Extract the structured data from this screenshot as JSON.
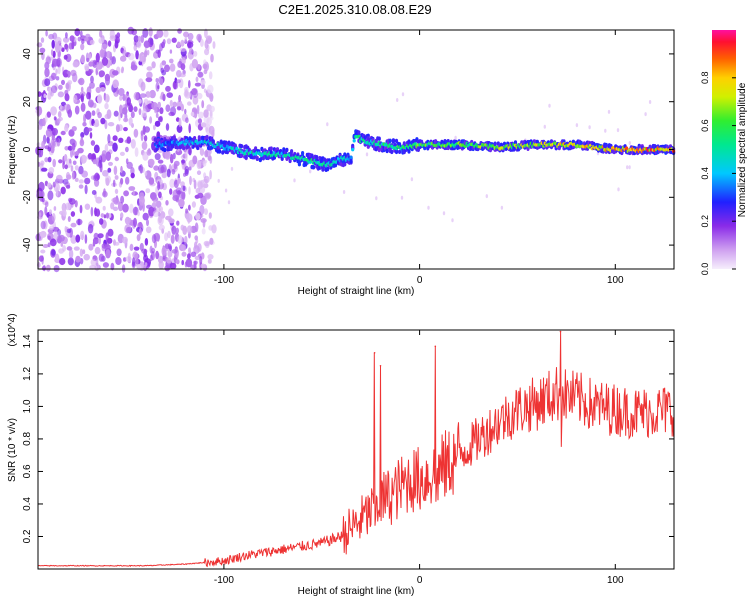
{
  "title": "C2E1.2025.310.08.08.E29",
  "chart_data": [
    {
      "type": "heatmap",
      "title": "C2E1.2025.310.08.08.E29",
      "xlabel": "Height of straight line (km)",
      "ylabel": "Frequency (Hz)",
      "xlim": [
        -195,
        130
      ],
      "ylim": [
        -50,
        50
      ],
      "x_ticks": [
        -100,
        0,
        100
      ],
      "x_tick_labels": [
        "-100",
        "0",
        "100"
      ],
      "y_ticks": [
        -40,
        -20,
        0,
        20,
        40
      ],
      "y_tick_labels": [
        "-40",
        "-20",
        "0",
        "20",
        "40"
      ],
      "colorbar": {
        "label": "Normalized spectral amplitude",
        "range": [
          0,
          1
        ],
        "ticks": [
          0.0,
          0.2,
          0.4,
          0.6,
          0.8
        ],
        "tick_labels": [
          "0.0",
          "0.2",
          "0.4",
          "0.6",
          "0.8"
        ]
      },
      "noise_region_x": [
        -195,
        -105
      ],
      "ridge": {
        "x": [
          -135,
          -120,
          -110,
          -100,
          -90,
          -80,
          -70,
          -60,
          -50,
          -45,
          -40,
          -35,
          -33,
          -30,
          -25,
          -20,
          -10,
          0,
          20,
          40,
          60,
          80,
          100,
          120,
          130
        ],
        "freq_hz": [
          2,
          3,
          3,
          1,
          -1,
          -2,
          -2,
          -4,
          -6,
          -6,
          -4,
          -4,
          6,
          4,
          3,
          2,
          1,
          2,
          2,
          1,
          2,
          2,
          0,
          0,
          0
        ],
        "amplitude": [
          0.35,
          0.45,
          0.5,
          0.5,
          0.55,
          0.55,
          0.55,
          0.6,
          0.6,
          0.55,
          0.5,
          0.45,
          0.6,
          0.6,
          0.55,
          0.6,
          0.6,
          0.7,
          0.7,
          0.75,
          0.8,
          0.85,
          0.9,
          0.95,
          0.95
        ]
      }
    },
    {
      "type": "line",
      "xlabel": "Height of straight line (km)",
      "ylabel": "SNR (10 * v/v)",
      "y_multiplier": "(x10^4)",
      "xlim": [
        -195,
        130
      ],
      "ylim": [
        0,
        1.47
      ],
      "x_ticks": [
        -100,
        0,
        100
      ],
      "x_tick_labels": [
        "-100",
        "0",
        "100"
      ],
      "y_ticks": [
        0.2,
        0.4,
        0.6,
        0.8,
        1.0,
        1.2,
        1.4
      ],
      "y_tick_labels": [
        "0.2",
        "0.4",
        "0.6",
        "0.8",
        "1.0",
        "1.2",
        "1.4"
      ],
      "color": "#ee3333",
      "series": [
        {
          "name": "SNR",
          "x": [
            -195,
            -160,
            -140,
            -120,
            -100,
            -90,
            -80,
            -70,
            -60,
            -50,
            -40,
            -35,
            -30,
            -25,
            -20,
            -15,
            -10,
            -5,
            0,
            10,
            20,
            30,
            40,
            50,
            60,
            70,
            80,
            90,
            100,
            110,
            120,
            130
          ],
          "y": [
            0.02,
            0.02,
            0.02,
            0.03,
            0.05,
            0.08,
            0.1,
            0.12,
            0.14,
            0.16,
            0.2,
            0.25,
            0.3,
            0.35,
            0.42,
            0.45,
            0.5,
            0.55,
            0.55,
            0.6,
            0.7,
            0.8,
            0.9,
            0.98,
            1.02,
            1.08,
            1.05,
            1.0,
            0.98,
            0.96,
            0.97,
            0.98
          ]
        }
      ],
      "peaks": [
        {
          "x": -23,
          "y": 1.33
        },
        {
          "x": -20,
          "y": 1.25
        },
        {
          "x": 8,
          "y": 1.37
        },
        {
          "x": 72,
          "y": 1.46
        }
      ]
    }
  ]
}
